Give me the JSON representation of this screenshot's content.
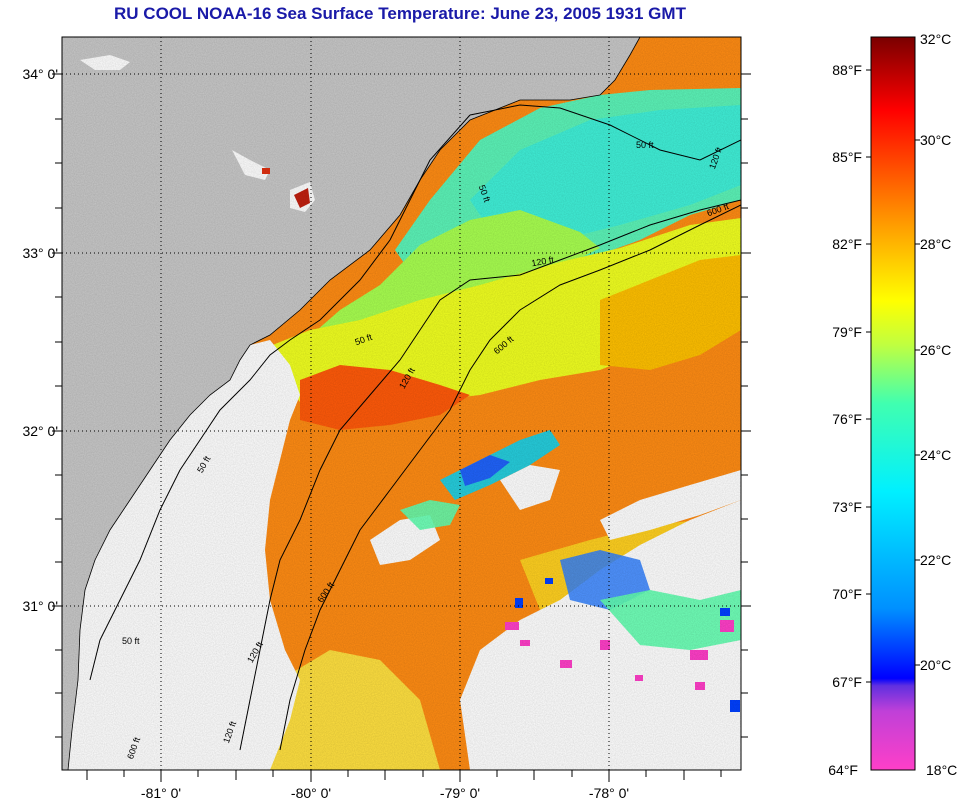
{
  "title": "RU COOL  NOAA-16  Sea Surface Temperature:  June 23, 2005 1931 GMT",
  "map": {
    "lon_ticks": [
      "-81° 0'",
      "-80° 0'",
      "-79° 0'",
      "-78° 0'"
    ],
    "lat_ticks": [
      "34° 0'",
      "33° 0'",
      "32° 0'",
      "31° 0'"
    ],
    "contour_labels": [
      "50 ft",
      "120 ft",
      "600 ft",
      "50 ft",
      "120 ft",
      "600 ft",
      "50 ft",
      "120 ft",
      "600 ft",
      "50 ft",
      "120 ft",
      "50 ft",
      "120 ft",
      "600 ft"
    ]
  },
  "colorbar": {
    "fahrenheit_labels": [
      "88°F",
      "85°F",
      "82°F",
      "79°F",
      "76°F",
      "73°F",
      "70°F",
      "67°F",
      "64°F"
    ],
    "celsius_labels": [
      "32°C",
      "30°C",
      "28°C",
      "26°C",
      "24°C",
      "22°C",
      "20°C",
      "18°C"
    ],
    "colors": [
      "#ff3fc8",
      "#8a3ce0",
      "#0000ff",
      "#0090ff",
      "#00f0ff",
      "#40ffb0",
      "#c0ff40",
      "#ffff00",
      "#ffa000",
      "#ff5000",
      "#ff0000",
      "#7a0000"
    ]
  },
  "colors": {
    "land": "#c8c8c8",
    "cloud": "#ffffff",
    "title": "#1a1aa8"
  }
}
